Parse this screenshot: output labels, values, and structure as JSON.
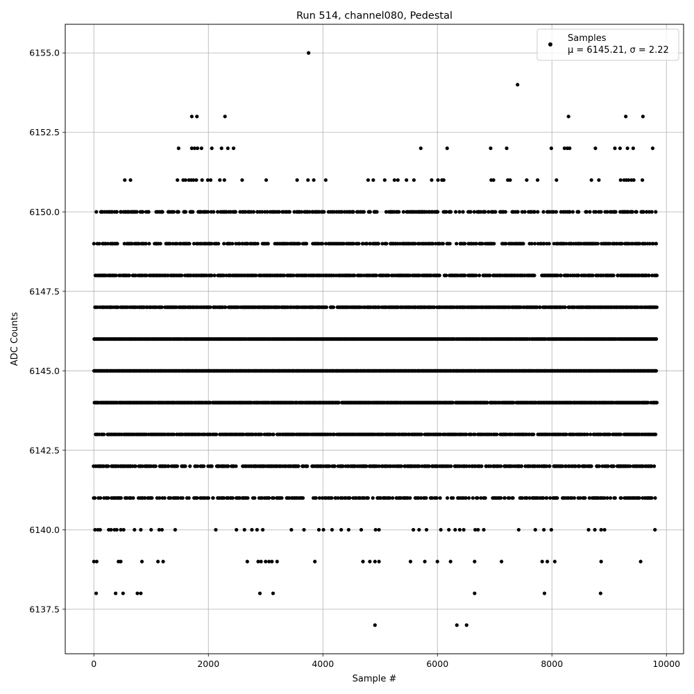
{
  "chart_data": {
    "type": "scatter",
    "title": "Run 514, channel080, Pedestal",
    "xlabel": "Sample #",
    "ylabel": "ADC Counts",
    "xlim": [
      -500,
      10300
    ],
    "ylim": [
      6136.1,
      6155.9
    ],
    "xticks": [
      0,
      2000,
      4000,
      6000,
      8000,
      10000
    ],
    "xtick_labels": [
      "0",
      "2000",
      "4000",
      "6000",
      "8000",
      "10000"
    ],
    "yticks": [
      6137.5,
      6140.0,
      6142.5,
      6145.0,
      6147.5,
      6150.0,
      6152.5,
      6155.0
    ],
    "ytick_labels": [
      "6137.5",
      "6140.0",
      "6142.5",
      "6145.0",
      "6147.5",
      "6150.0",
      "6152.5",
      "6155.0"
    ],
    "grid": true,
    "legend_position": "top-right",
    "marker_color": "#000000",
    "series": [
      {
        "name": "Samples",
        "stats_label": "μ = 6145.21, σ = 2.22",
        "mu": 6145.21,
        "sigma": 2.22,
        "n_samples": 9830,
        "dense_levels": [
          6141,
          6142,
          6143,
          6144,
          6145,
          6146,
          6147,
          6148,
          6149,
          6150
        ],
        "sparse_points": [
          {
            "x": 3750,
            "y": 6155
          },
          {
            "x": 7400,
            "y": 6154
          },
          {
            "x": 1710,
            "y": 6153
          },
          {
            "x": 1800,
            "y": 6153
          },
          {
            "x": 2290,
            "y": 6153
          },
          {
            "x": 8290,
            "y": 6153
          },
          {
            "x": 9290,
            "y": 6153
          },
          {
            "x": 9590,
            "y": 6153
          },
          {
            "x": 1480,
            "y": 6152
          },
          {
            "x": 1710,
            "y": 6152
          },
          {
            "x": 1760,
            "y": 6152
          },
          {
            "x": 1810,
            "y": 6152
          },
          {
            "x": 1880,
            "y": 6152
          },
          {
            "x": 2060,
            "y": 6152
          },
          {
            "x": 2230,
            "y": 6152
          },
          {
            "x": 2340,
            "y": 6152
          },
          {
            "x": 2440,
            "y": 6152
          },
          {
            "x": 5710,
            "y": 6152
          },
          {
            "x": 6170,
            "y": 6152
          },
          {
            "x": 6930,
            "y": 6152
          },
          {
            "x": 7210,
            "y": 6152
          },
          {
            "x": 7990,
            "y": 6152
          },
          {
            "x": 8220,
            "y": 6152
          },
          {
            "x": 8270,
            "y": 6152
          },
          {
            "x": 8310,
            "y": 6152
          },
          {
            "x": 8760,
            "y": 6152
          },
          {
            "x": 9100,
            "y": 6152
          },
          {
            "x": 9190,
            "y": 6152
          },
          {
            "x": 9320,
            "y": 6152
          },
          {
            "x": 9420,
            "y": 6152
          },
          {
            "x": 9760,
            "y": 6152
          },
          {
            "x": 540,
            "y": 6151
          },
          {
            "x": 640,
            "y": 6151
          },
          {
            "x": 1460,
            "y": 6151
          },
          {
            "x": 1560,
            "y": 6151
          },
          {
            "x": 1600,
            "y": 6151
          },
          {
            "x": 1660,
            "y": 6151
          },
          {
            "x": 1700,
            "y": 6151
          },
          {
            "x": 1740,
            "y": 6151
          },
          {
            "x": 1790,
            "y": 6151
          },
          {
            "x": 1890,
            "y": 6151
          },
          {
            "x": 1990,
            "y": 6151
          },
          {
            "x": 2040,
            "y": 6151
          },
          {
            "x": 2200,
            "y": 6151
          },
          {
            "x": 2280,
            "y": 6151
          },
          {
            "x": 2590,
            "y": 6151
          },
          {
            "x": 3010,
            "y": 6151
          },
          {
            "x": 3550,
            "y": 6151
          },
          {
            "x": 3740,
            "y": 6151
          },
          {
            "x": 3840,
            "y": 6151
          },
          {
            "x": 4050,
            "y": 6151
          },
          {
            "x": 4790,
            "y": 6151
          },
          {
            "x": 4880,
            "y": 6151
          },
          {
            "x": 5080,
            "y": 6151
          },
          {
            "x": 5250,
            "y": 6151
          },
          {
            "x": 5310,
            "y": 6151
          },
          {
            "x": 5460,
            "y": 6151
          },
          {
            "x": 5590,
            "y": 6151
          },
          {
            "x": 5900,
            "y": 6151
          },
          {
            "x": 6010,
            "y": 6151
          },
          {
            "x": 6080,
            "y": 6151
          },
          {
            "x": 6110,
            "y": 6151
          },
          {
            "x": 6940,
            "y": 6151
          },
          {
            "x": 6980,
            "y": 6151
          },
          {
            "x": 7230,
            "y": 6151
          },
          {
            "x": 7270,
            "y": 6151
          },
          {
            "x": 7560,
            "y": 6151
          },
          {
            "x": 7750,
            "y": 6151
          },
          {
            "x": 8080,
            "y": 6151
          },
          {
            "x": 8690,
            "y": 6151
          },
          {
            "x": 8820,
            "y": 6151
          },
          {
            "x": 9200,
            "y": 6151
          },
          {
            "x": 9260,
            "y": 6151
          },
          {
            "x": 9300,
            "y": 6151
          },
          {
            "x": 9340,
            "y": 6151
          },
          {
            "x": 9390,
            "y": 6151
          },
          {
            "x": 9430,
            "y": 6151
          },
          {
            "x": 9580,
            "y": 6151
          },
          {
            "x": 20,
            "y": 6140
          },
          {
            "x": 70,
            "y": 6140
          },
          {
            "x": 110,
            "y": 6140
          },
          {
            "x": 260,
            "y": 6140
          },
          {
            "x": 300,
            "y": 6140
          },
          {
            "x": 360,
            "y": 6140
          },
          {
            "x": 400,
            "y": 6140
          },
          {
            "x": 470,
            "y": 6140
          },
          {
            "x": 520,
            "y": 6140
          },
          {
            "x": 710,
            "y": 6140
          },
          {
            "x": 820,
            "y": 6140
          },
          {
            "x": 1000,
            "y": 6140
          },
          {
            "x": 1140,
            "y": 6140
          },
          {
            "x": 1190,
            "y": 6140
          },
          {
            "x": 1420,
            "y": 6140
          },
          {
            "x": 2130,
            "y": 6140
          },
          {
            "x": 2490,
            "y": 6140
          },
          {
            "x": 2630,
            "y": 6140
          },
          {
            "x": 2760,
            "y": 6140
          },
          {
            "x": 2850,
            "y": 6140
          },
          {
            "x": 2950,
            "y": 6140
          },
          {
            "x": 3450,
            "y": 6140
          },
          {
            "x": 3670,
            "y": 6140
          },
          {
            "x": 3930,
            "y": 6140
          },
          {
            "x": 4010,
            "y": 6140
          },
          {
            "x": 4160,
            "y": 6140
          },
          {
            "x": 4320,
            "y": 6140
          },
          {
            "x": 4450,
            "y": 6140
          },
          {
            "x": 4670,
            "y": 6140
          },
          {
            "x": 4920,
            "y": 6140
          },
          {
            "x": 4980,
            "y": 6140
          },
          {
            "x": 5580,
            "y": 6140
          },
          {
            "x": 5680,
            "y": 6140
          },
          {
            "x": 5810,
            "y": 6140
          },
          {
            "x": 6060,
            "y": 6140
          },
          {
            "x": 6200,
            "y": 6140
          },
          {
            "x": 6310,
            "y": 6140
          },
          {
            "x": 6390,
            "y": 6140
          },
          {
            "x": 6460,
            "y": 6140
          },
          {
            "x": 6660,
            "y": 6140
          },
          {
            "x": 6710,
            "y": 6140
          },
          {
            "x": 6810,
            "y": 6140
          },
          {
            "x": 7420,
            "y": 6140
          },
          {
            "x": 7710,
            "y": 6140
          },
          {
            "x": 7860,
            "y": 6140
          },
          {
            "x": 7990,
            "y": 6140
          },
          {
            "x": 8640,
            "y": 6140
          },
          {
            "x": 8750,
            "y": 6140
          },
          {
            "x": 8860,
            "y": 6140
          },
          {
            "x": 8920,
            "y": 6140
          },
          {
            "x": 9800,
            "y": 6140
          },
          {
            "x": 0,
            "y": 6139
          },
          {
            "x": 50,
            "y": 6139
          },
          {
            "x": 430,
            "y": 6139
          },
          {
            "x": 470,
            "y": 6139
          },
          {
            "x": 840,
            "y": 6139
          },
          {
            "x": 1120,
            "y": 6139
          },
          {
            "x": 1210,
            "y": 6139
          },
          {
            "x": 2680,
            "y": 6139
          },
          {
            "x": 2870,
            "y": 6139
          },
          {
            "x": 2920,
            "y": 6139
          },
          {
            "x": 3000,
            "y": 6139
          },
          {
            "x": 3060,
            "y": 6139
          },
          {
            "x": 3110,
            "y": 6139
          },
          {
            "x": 3200,
            "y": 6139
          },
          {
            "x": 3860,
            "y": 6139
          },
          {
            "x": 4700,
            "y": 6139
          },
          {
            "x": 4820,
            "y": 6139
          },
          {
            "x": 4910,
            "y": 6139
          },
          {
            "x": 4980,
            "y": 6139
          },
          {
            "x": 5530,
            "y": 6139
          },
          {
            "x": 5780,
            "y": 6139
          },
          {
            "x": 6000,
            "y": 6139
          },
          {
            "x": 6230,
            "y": 6139
          },
          {
            "x": 6650,
            "y": 6139
          },
          {
            "x": 7120,
            "y": 6139
          },
          {
            "x": 7830,
            "y": 6139
          },
          {
            "x": 7920,
            "y": 6139
          },
          {
            "x": 8050,
            "y": 6139
          },
          {
            "x": 8860,
            "y": 6139
          },
          {
            "x": 9550,
            "y": 6139
          },
          {
            "x": 40,
            "y": 6138
          },
          {
            "x": 380,
            "y": 6138
          },
          {
            "x": 510,
            "y": 6138
          },
          {
            "x": 760,
            "y": 6138
          },
          {
            "x": 820,
            "y": 6138
          },
          {
            "x": 2900,
            "y": 6138
          },
          {
            "x": 3130,
            "y": 6138
          },
          {
            "x": 6650,
            "y": 6138
          },
          {
            "x": 7870,
            "y": 6138
          },
          {
            "x": 8850,
            "y": 6138
          },
          {
            "x": 4910,
            "y": 6137
          },
          {
            "x": 6340,
            "y": 6137
          },
          {
            "x": 6510,
            "y": 6137
          }
        ]
      }
    ]
  }
}
